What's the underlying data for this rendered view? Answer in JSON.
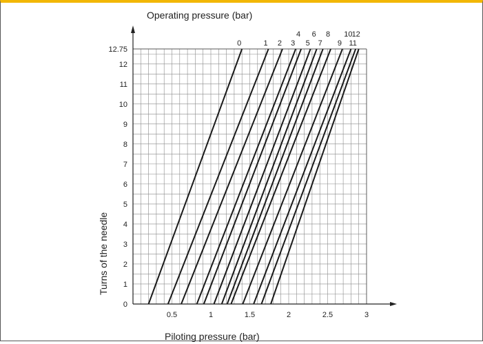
{
  "chart_data": {
    "type": "line",
    "title": "",
    "top_label": "Operating pressure (bar)",
    "xlabel": "Piloting pressure (bar)",
    "ylabel": "Turns of the needle",
    "xlim": [
      0,
      3
    ],
    "ylim": [
      0,
      12.75
    ],
    "x_ticks": [
      {
        "v": 0.5,
        "label": "0.5"
      },
      {
        "v": 1,
        "label": "1"
      },
      {
        "v": 1.5,
        "label": "1.5"
      },
      {
        "v": 2,
        "label": "2"
      },
      {
        "v": 2.5,
        "label": "2.5"
      },
      {
        "v": 3,
        "label": "3"
      }
    ],
    "y_ticks": [
      {
        "v": 0,
        "label": "0"
      },
      {
        "v": 1,
        "label": "1"
      },
      {
        "v": 2,
        "label": "2"
      },
      {
        "v": 3,
        "label": "3"
      },
      {
        "v": 4,
        "label": "4"
      },
      {
        "v": 5,
        "label": "5"
      },
      {
        "v": 6,
        "label": "6"
      },
      {
        "v": 7,
        "label": "7"
      },
      {
        "v": 8,
        "label": "8"
      },
      {
        "v": 9,
        "label": "9"
      },
      {
        "v": 10,
        "label": "10"
      },
      {
        "v": 11,
        "label": "11"
      },
      {
        "v": 12,
        "label": "12"
      },
      {
        "v": 12.75,
        "label": "12.75"
      }
    ],
    "grid": true,
    "series": [
      {
        "name": "0",
        "x": [
          0.2,
          1.4
        ],
        "y": [
          0,
          12.75
        ]
      },
      {
        "name": "1",
        "x": [
          0.45,
          1.74
        ],
        "y": [
          0,
          12.75
        ]
      },
      {
        "name": "2",
        "x": [
          0.62,
          1.92
        ],
        "y": [
          0,
          12.75
        ]
      },
      {
        "name": "3",
        "x": [
          0.82,
          2.09
        ],
        "y": [
          0,
          12.75
        ]
      },
      {
        "name": "4",
        "x": [
          0.91,
          2.16
        ],
        "y": [
          0,
          12.75
        ]
      },
      {
        "name": "5",
        "x": [
          1.04,
          2.28
        ],
        "y": [
          0,
          12.75
        ]
      },
      {
        "name": "6",
        "x": [
          1.14,
          2.36
        ],
        "y": [
          0,
          12.75
        ]
      },
      {
        "name": "7",
        "x": [
          1.21,
          2.44
        ],
        "y": [
          0,
          12.75
        ]
      },
      {
        "name": "8",
        "x": [
          1.26,
          2.54
        ],
        "y": [
          0,
          12.75
        ]
      },
      {
        "name": "9",
        "x": [
          1.41,
          2.69
        ],
        "y": [
          0,
          12.75
        ]
      },
      {
        "name": "10",
        "x": [
          1.55,
          2.8
        ],
        "y": [
          0,
          12.75
        ]
      },
      {
        "name": "11",
        "x": [
          1.65,
          2.86
        ],
        "y": [
          0,
          12.75
        ]
      },
      {
        "name": "12",
        "x": [
          1.77,
          2.9
        ],
        "y": [
          0,
          12.75
        ]
      }
    ]
  }
}
